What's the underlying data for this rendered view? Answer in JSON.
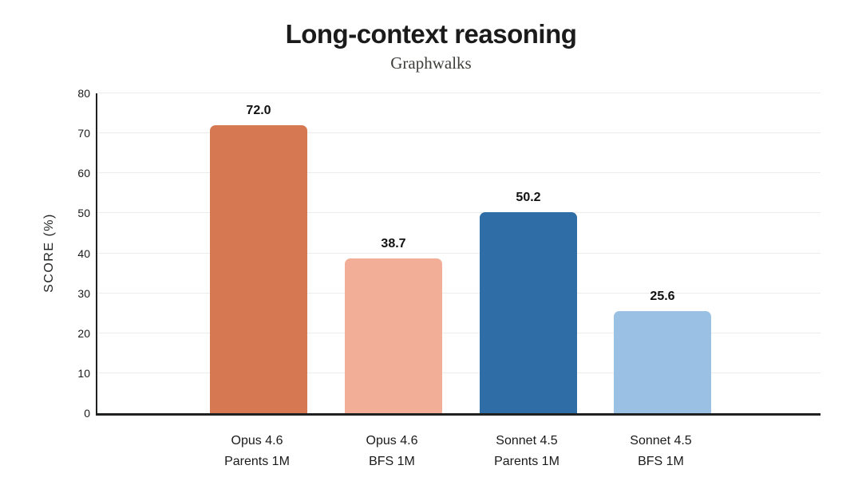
{
  "chart_data": {
    "type": "bar",
    "title": "Long-context reasoning",
    "subtitle": "Graphwalks",
    "ylabel": "SCORE (%)",
    "xlabel": "",
    "ylim": [
      0,
      80
    ],
    "yticks": [
      0,
      10,
      20,
      30,
      40,
      50,
      60,
      70,
      80
    ],
    "grid": true,
    "legend": false,
    "categories": [
      [
        "Opus 4.6",
        "Parents 1M"
      ],
      [
        "Opus 4.6",
        "BFS 1M"
      ],
      [
        "Sonnet 4.5",
        "Parents 1M"
      ],
      [
        "Sonnet 4.5",
        "BFS 1M"
      ]
    ],
    "values": [
      72.0,
      38.7,
      50.2,
      25.6
    ],
    "value_labels": [
      "72.0",
      "38.7",
      "50.2",
      "25.6"
    ],
    "bar_colors": [
      "#D67852",
      "#F2AE97",
      "#2F6DA6",
      "#9AC1E4"
    ],
    "axis_color": "#1F2121",
    "grid_color": "#ECECEA",
    "text_color": "#1A1A1A",
    "background_color": "#FFFFFF"
  }
}
